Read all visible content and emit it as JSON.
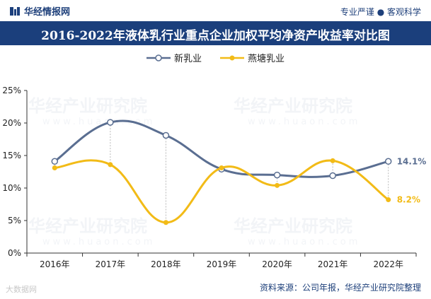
{
  "header": {
    "brand": "华经情报网",
    "slogan": "专业严谨 ● 客观科学",
    "title": "2016-2022年液体乳行业重点企业加权平均净资产收益率对比图"
  },
  "watermark": {
    "text": "华经产业研究院",
    "url": "www.huaon.com",
    "corner": "大数据网"
  },
  "footer": {
    "source": "资料来源：公司年报，华经产业研究院整理"
  },
  "chart_data": {
    "type": "line",
    "categories": [
      "2016年",
      "2017年",
      "2018年",
      "2019年",
      "2020年",
      "2021年",
      "2022年"
    ],
    "ylim": [
      0,
      25
    ],
    "yticks": [
      "0%",
      "5%",
      "10%",
      "15%",
      "20%",
      "25%"
    ],
    "series": [
      {
        "name": "新乳业",
        "values": [
          14.1,
          20.1,
          18.1,
          12.9,
          12.0,
          11.9,
          14.1
        ],
        "color": "#5a6e91",
        "end_label": "14.1%"
      },
      {
        "name": "燕塘乳业",
        "values": [
          13.1,
          13.6,
          4.7,
          13.1,
          10.4,
          14.2,
          8.2
        ],
        "color": "#f2bb17",
        "end_label": "8.2%"
      }
    ]
  }
}
